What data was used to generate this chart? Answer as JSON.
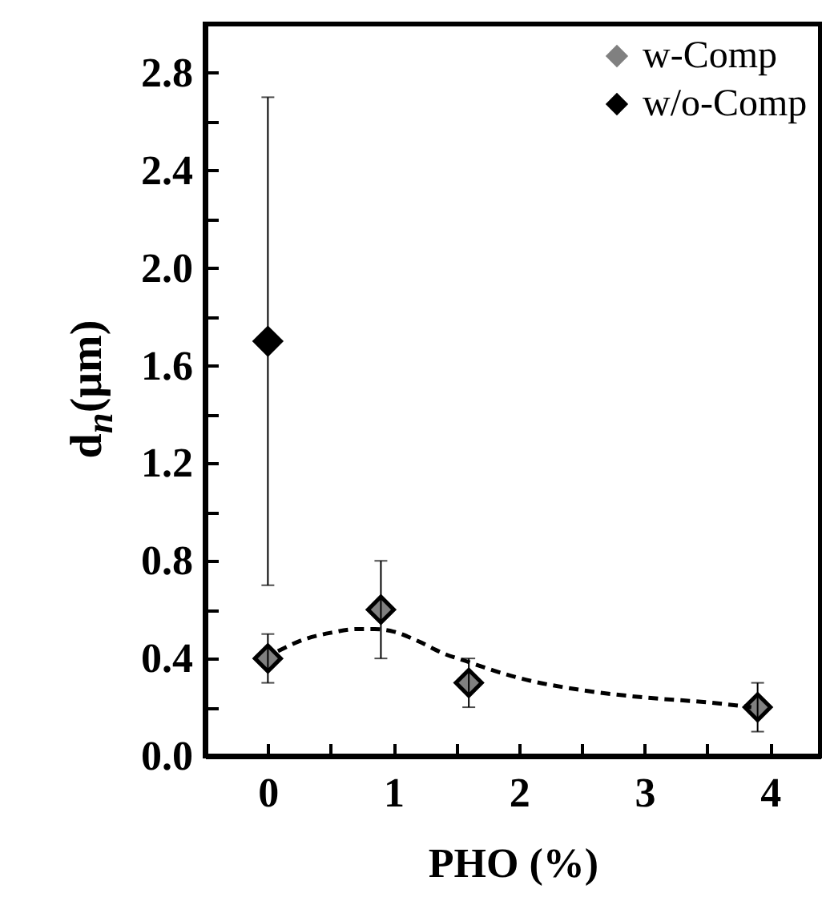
{
  "chart_data": {
    "type": "scatter",
    "xlabel": "PHO (%)",
    "ylabel": "d$_{n}$(μm)",
    "xlim": [
      -0.5,
      4.4
    ],
    "xticks": [
      0,
      {
        "value": 0.5,
        "label": null
      },
      1,
      {
        "value": 1.5,
        "label": null
      },
      2,
      {
        "value": 2.5,
        "label": null
      },
      3,
      {
        "value": 3.5,
        "label": null
      },
      4
    ],
    "ylim": [
      0,
      3.0
    ],
    "yticks": [
      {
        "value": 0,
        "label": "0.0"
      },
      {
        "value": 0.2,
        "label": null
      },
      0.4,
      {
        "value": 0.6,
        "label": null
      },
      0.8,
      {
        "value": 1.0,
        "label": null
      },
      1.2,
      {
        "value": 1.4,
        "label": null
      },
      1.6,
      {
        "value": 1.8,
        "label": null
      },
      {
        "value": 2,
        "label": "2.0"
      },
      {
        "value": 2.2,
        "label": null
      },
      2.4,
      {
        "value": 2.6,
        "label": null
      },
      2.8
    ],
    "marker": "diamond",
    "legend": "top right",
    "grid": false,
    "series": [
      {
        "name": "w-Comp",
        "color": "#808080",
        "x": [
          0,
          0.9,
          1.6,
          3.9
        ],
        "values": [
          0.4,
          0.6,
          0.3,
          0.2
        ],
        "errors": [
          0.1,
          0.2,
          0.1,
          0.1
        ]
      },
      {
        "name": "w/o-Comp",
        "color": "#000000",
        "x": [
          0
        ],
        "values": [
          1.7
        ],
        "errors": [
          1.0
        ]
      },
      {
        "type": "line",
        "marker": "none",
        "line_style": "dashed",
        "color": "#000000",
        "x": [
          0.08,
          0.3,
          0.5,
          0.7,
          0.85,
          1.0,
          1.2,
          1.4,
          1.6,
          1.8,
          2.0,
          2.5,
          3.0,
          3.5,
          3.85
        ],
        "values": [
          0.43,
          0.48,
          0.505,
          0.52,
          0.52,
          0.51,
          0.47,
          0.42,
          0.385,
          0.35,
          0.32,
          0.27,
          0.24,
          0.22,
          0.2
        ]
      }
    ]
  }
}
